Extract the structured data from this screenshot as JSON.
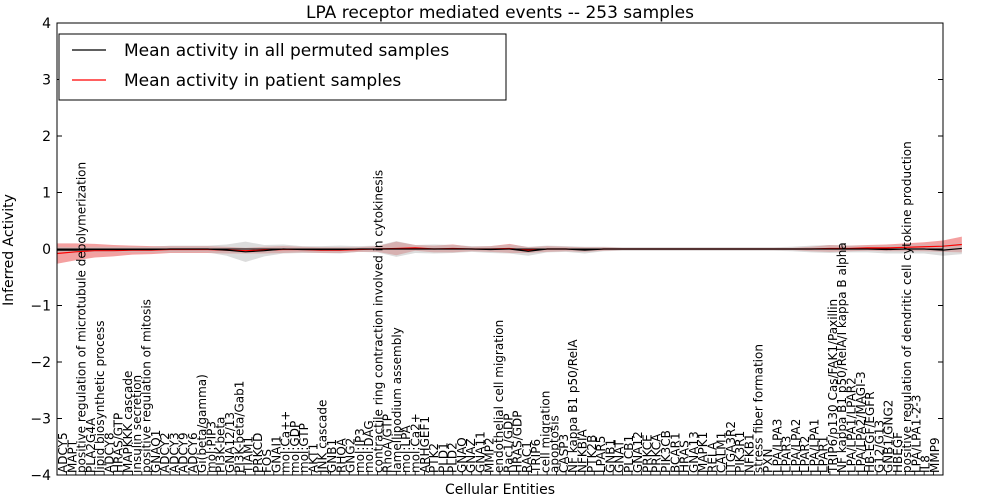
{
  "chart_data": {
    "type": "line",
    "title": "LPA receptor mediated events -- 253 samples",
    "xlabel": "Cellular Entities",
    "ylabel": "Inferred Activity",
    "ylim": [
      -4,
      4
    ],
    "yticks": [
      "4",
      "3",
      "2",
      "1",
      "0",
      "−1",
      "−2",
      "−3",
      "−4"
    ],
    "ytick_values": [
      4,
      3,
      2,
      1,
      0,
      -1,
      -2,
      -3,
      -4
    ],
    "legend": {
      "placement": "top-left",
      "entries": [
        {
          "label": "Mean activity in all permuted samples",
          "color": "#000000"
        },
        {
          "label": "Mean activity in patient samples",
          "color": "#ff0000"
        }
      ]
    },
    "colors": {
      "permuted": "#000000",
      "patient": "#ff0000",
      "patient_band": "#f08080",
      "permuted_band": "#c0c0c0"
    },
    "entities": [
      "ADCY5",
      "MAPT",
      "positive regulation of microtubule depolymerization",
      "PLA2G4A",
      "lipid biosynthetic process",
      "ADCY8",
      "HRAS/GTP",
      "MAPKKK cascade",
      "insulin secretion",
      "positive regulation of mitosis",
      "GNAQ1",
      "ADCY2",
      "ADCY3",
      "ADCY9",
      "ADCY6",
      "Gi(beta/gamma)",
      "mol:PIP3",
      "PI3K-beta",
      "GNA12/13",
      "PI3K-beta/Gab1",
      "TIAM1",
      "PRKCD",
      "FOS",
      "GNAI1",
      "mol:Ca++",
      "mol:GDP",
      "mol:GTP",
      "AKT1",
      "JNK cascade",
      "GNB1",
      "RHOA",
      "GNG2",
      "mol:IP3",
      "mol:DAG",
      "contractile ring contraction involved in cytokinesis",
      "RhoA/GTP",
      "lamellipodium assembly",
      "mol:LPA",
      "mol:Ca2+",
      "ARHGEF1",
      "PTK2",
      "PLD1",
      "PLD2",
      "GNAO",
      "GNAZ",
      "GNA11",
      "MMP2",
      "endothelial cell migration",
      "Rac1/GDP",
      "HRAS/GDP",
      "RAC1",
      "TRIP6",
      "cell migration",
      "apoptosis",
      "CASP3",
      "NF kappa B1 p50/RelA",
      "NFKBIA",
      "PTK2B",
      "LPAR5",
      "GNB1",
      "GNAT",
      "PLCB1",
      "GNA12",
      "PRKCE",
      "PRKCA",
      "PIK3CB",
      "BCAR1",
      "HRAS",
      "GNA13",
      "MAPK1",
      "RELA",
      "CALM1",
      "ITGA3R2",
      "PIK3R1",
      "NFKB1",
      "stress fiber formation",
      "PXN",
      "LPA/LPA3",
      "LPAR3",
      "LPA/LPA2",
      "LPAR2",
      "LPA/LPA1",
      "LPAR1",
      "TRIP6/p130 Cas/FAK1/Paxillin",
      "NF kappa B1 p50/RelA/I kappa B alpha",
      "LPA/LPA1/LPAR2",
      "LPA/LPA2/MAGI-3",
      "HB-EGF/EGFR",
      "G12/G13",
      "GNB1/GNG2",
      "HBEGF",
      "positive regulation of dendritic cell cytokine production",
      "LPA/LPA1-2-3",
      "IL8",
      "MMP9"
    ],
    "series": [
      {
        "name": "Mean activity in patient samples",
        "x": [
          0,
          2,
          4,
          6,
          8,
          10,
          12,
          14,
          16,
          18,
          20,
          22,
          24,
          26,
          28,
          30,
          32,
          34,
          36,
          38,
          40,
          42,
          44,
          46,
          48,
          50,
          52,
          54,
          56,
          58,
          60,
          62,
          64,
          66,
          68,
          70,
          72,
          74,
          76,
          78,
          80,
          82,
          84,
          86,
          88,
          90,
          92,
          94,
          96
        ],
        "values": [
          -0.08,
          -0.05,
          -0.03,
          -0.03,
          -0.02,
          -0.02,
          -0.01,
          -0.01,
          -0.01,
          -0.02,
          -0.03,
          -0.02,
          -0.01,
          -0.01,
          -0.02,
          -0.02,
          -0.01,
          0.0,
          0.01,
          0.02,
          0.0,
          0.01,
          0.0,
          0.0,
          0.01,
          -0.02,
          0.0,
          0.0,
          -0.01,
          0.0,
          0.0,
          0.0,
          0.0,
          0.0,
          0.0,
          0.0,
          0.0,
          0.0,
          0.0,
          0.0,
          0.0,
          0.01,
          0.01,
          0.02,
          0.02,
          0.03,
          0.04,
          0.05,
          0.08
        ],
        "band": [
          0.18,
          0.15,
          0.12,
          0.1,
          0.08,
          0.07,
          0.06,
          0.06,
          0.06,
          0.06,
          0.05,
          0.06,
          0.06,
          0.05,
          0.05,
          0.05,
          0.04,
          0.05,
          0.12,
          0.05,
          0.06,
          0.07,
          0.04,
          0.05,
          0.08,
          0.05,
          0.05,
          0.04,
          0.04,
          0.03,
          0.02,
          0.02,
          0.02,
          0.02,
          0.02,
          0.02,
          0.02,
          0.02,
          0.02,
          0.02,
          0.04,
          0.06,
          0.05,
          0.05,
          0.06,
          0.07,
          0.08,
          0.1,
          0.14
        ]
      },
      {
        "name": "Mean activity in all permuted samples",
        "x": [
          0,
          2,
          4,
          6,
          8,
          10,
          12,
          14,
          16,
          18,
          20,
          22,
          24,
          26,
          28,
          30,
          32,
          34,
          36,
          38,
          40,
          42,
          44,
          46,
          48,
          50,
          52,
          54,
          56,
          58,
          60,
          62,
          64,
          66,
          68,
          70,
          72,
          74,
          76,
          78,
          80,
          82,
          84,
          86,
          88,
          90,
          92,
          94,
          96
        ],
        "values": [
          -0.02,
          -0.02,
          -0.01,
          -0.01,
          -0.01,
          -0.01,
          0.0,
          0.0,
          0.0,
          -0.02,
          -0.05,
          -0.03,
          0.0,
          -0.01,
          -0.01,
          -0.01,
          0.0,
          0.0,
          0.0,
          0.0,
          0.0,
          0.0,
          0.0,
          -0.01,
          0.0,
          -0.04,
          0.0,
          0.0,
          -0.02,
          0.0,
          0.0,
          0.0,
          0.0,
          0.0,
          0.0,
          0.0,
          0.0,
          0.0,
          0.0,
          0.0,
          0.0,
          0.0,
          0.0,
          0.0,
          -0.01,
          0.0,
          0.0,
          -0.02,
          0.01
        ],
        "band": [
          0.06,
          0.05,
          0.05,
          0.05,
          0.05,
          0.05,
          0.06,
          0.06,
          0.06,
          0.1,
          0.18,
          0.1,
          0.08,
          0.06,
          0.06,
          0.07,
          0.05,
          0.06,
          0.14,
          0.07,
          0.08,
          0.07,
          0.05,
          0.06,
          0.08,
          0.08,
          0.06,
          0.05,
          0.06,
          0.04,
          0.03,
          0.03,
          0.03,
          0.03,
          0.03,
          0.03,
          0.03,
          0.03,
          0.03,
          0.04,
          0.06,
          0.07,
          0.06,
          0.06,
          0.07,
          0.08,
          0.08,
          0.1,
          0.1
        ]
      }
    ]
  }
}
